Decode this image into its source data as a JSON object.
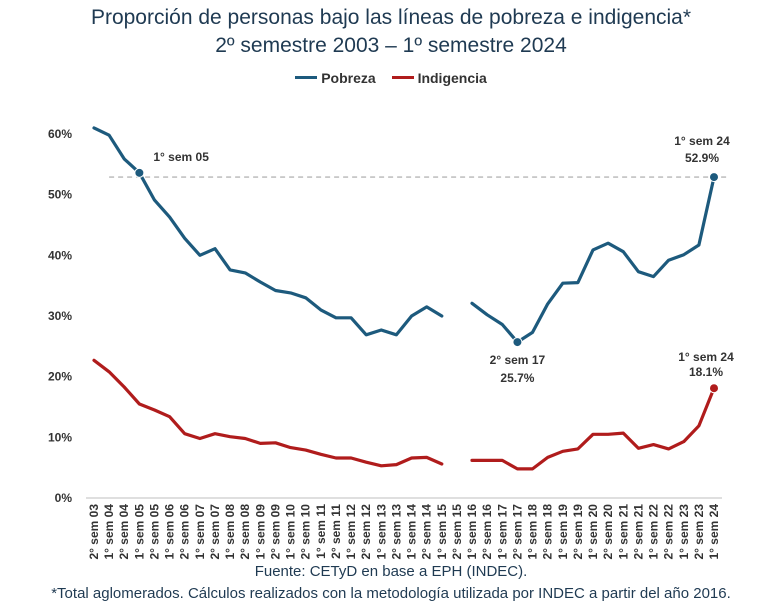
{
  "chart_data": {
    "type": "line",
    "title": "Proporción de personas bajo las líneas de pobreza e indigencia*",
    "subtitle": "2º semestre 2003 – 1º semestre 2024",
    "xlabel": "",
    "ylabel": "",
    "ylim": [
      0,
      60
    ],
    "yticks": [
      "0%",
      "10%",
      "20%",
      "30%",
      "40%",
      "50%",
      "60%"
    ],
    "categories": [
      "2° sem 03",
      "1° sem 04",
      "2° sem 04",
      "1° sem 05",
      "2° sem 05",
      "1° sem 06",
      "2° sem 06",
      "1° sem 07",
      "2° sem 07",
      "1° sem 08",
      "2° sem 08",
      "1° sem 09",
      "2° sem 09",
      "1° sem 10",
      "2° sem 10",
      "1° sem 11",
      "2° sem 11",
      "1° sem 12",
      "2° sem 12",
      "1° sem 13",
      "2° sem 13",
      "1° sem 14",
      "2° sem 14",
      "1° sem 15",
      "2° sem 15",
      "1° sem 16",
      "2° sem 16",
      "1° sem 17",
      "2° sem 17",
      "1° sem 18",
      "2° sem 18",
      "1° sem 19",
      "2° sem 19",
      "1° sem 20",
      "2° sem 20",
      "1° sem 21",
      "2° sem 21",
      "1° sem 22",
      "2° sem 22",
      "1° sem 23",
      "2° sem 23",
      "1° sem 24"
    ],
    "series": [
      {
        "name": "Pobreza",
        "color": "#1d5a7d",
        "values": [
          61.0,
          59.8,
          55.9,
          53.6,
          49.1,
          46.3,
          42.8,
          40.0,
          41.1,
          37.6,
          37.1,
          35.6,
          34.2,
          33.8,
          33.0,
          31.0,
          29.7,
          29.7,
          26.9,
          27.7,
          26.9,
          30.0,
          31.5,
          30.0,
          null,
          32.1,
          30.2,
          28.6,
          25.7,
          27.3,
          32.0,
          35.4,
          35.5,
          40.9,
          42.0,
          40.6,
          37.3,
          36.5,
          39.2,
          40.1,
          41.7,
          52.9
        ]
      },
      {
        "name": "Indigencia",
        "color": "#b01c1c",
        "values": [
          22.7,
          20.8,
          18.3,
          15.5,
          14.5,
          13.4,
          10.6,
          9.8,
          10.6,
          10.1,
          9.8,
          9.0,
          9.1,
          8.3,
          7.9,
          7.2,
          6.6,
          6.6,
          5.9,
          5.3,
          5.5,
          6.6,
          6.7,
          5.6,
          null,
          6.2,
          6.2,
          6.2,
          4.8,
          4.8,
          6.7,
          7.7,
          8.1,
          10.5,
          10.5,
          10.7,
          8.2,
          8.8,
          8.1,
          9.3,
          11.9,
          18.1
        ]
      }
    ],
    "reference_line_value": 52.9,
    "annotations": [
      {
        "series": "Pobreza",
        "category": "1° sem 05",
        "label": "1° sem 05",
        "value_label": ""
      },
      {
        "series": "Pobreza",
        "category": "2° sem 17",
        "label": "2° sem 17",
        "value_label": "25.7%"
      },
      {
        "series": "Pobreza",
        "category": "1° sem 24",
        "label": "1° sem 24",
        "value_label": "52.9%"
      },
      {
        "series": "Indigencia",
        "category": "1° sem 24",
        "label": "1° sem 24",
        "value_label": "18.1%"
      }
    ]
  },
  "footer": {
    "source": "Fuente: CETyD en base a EPH (INDEC).",
    "note": "*Total aglomerados. Cálculos realizados con la metodología utilizada por INDEC a partir del año 2016."
  }
}
